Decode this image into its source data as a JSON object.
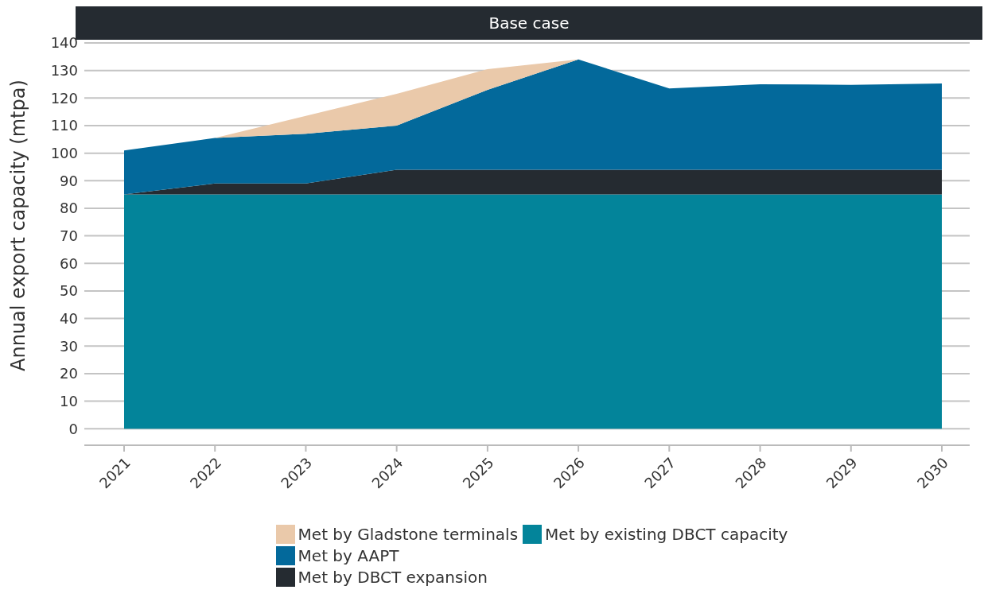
{
  "chart_data": {
    "type": "area",
    "title": "Base case",
    "ylabel": "Annual export capacity (mtpa)",
    "stacked": true,
    "categories": [
      "2021",
      "2022",
      "2023",
      "2024",
      "2025",
      "2026",
      "2027",
      "2028",
      "2029",
      "2030"
    ],
    "series": [
      {
        "name": "Met by existing DBCT capacity",
        "color": "#03849a",
        "values": [
          85,
          85,
          85,
          85,
          85,
          85,
          85,
          85,
          85,
          85
        ]
      },
      {
        "name": "Met by DBCT expansion",
        "color": "#252b31",
        "values": [
          0,
          4,
          4,
          9,
          9,
          9,
          9,
          9,
          9,
          9
        ]
      },
      {
        "name": "Met by AAPT",
        "color": "#03699b",
        "values": [
          16,
          16.5,
          18,
          16,
          29,
          40,
          29.5,
          31,
          30.8,
          31.3
        ]
      },
      {
        "name": "Met by Gladstone terminals",
        "color": "#eac9aa",
        "values": [
          0,
          0,
          6.5,
          11.5,
          7.5,
          0,
          0,
          0,
          0,
          0
        ]
      }
    ],
    "ylim": [
      -6,
      140
    ],
    "yticks": [
      0,
      10,
      20,
      30,
      40,
      50,
      60,
      70,
      80,
      90,
      100,
      110,
      120,
      130,
      140
    ],
    "grid": "y",
    "legend": "bottom"
  }
}
